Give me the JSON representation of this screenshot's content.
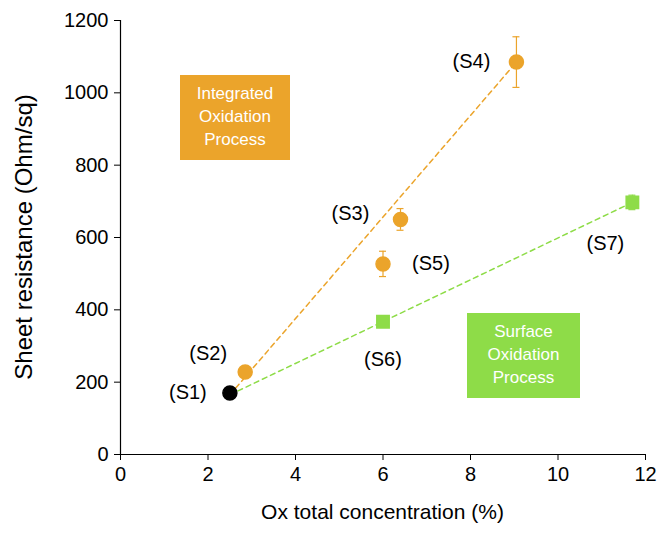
{
  "chart_data": {
    "type": "scatter",
    "x_label": "Ox total concentration (%)",
    "y_label": "Sheet resistance (Ohm/sq)",
    "xlim": [
      0,
      12
    ],
    "xticks": [
      0,
      2,
      4,
      6,
      8,
      10,
      12
    ],
    "ylim": [
      0,
      1200
    ],
    "yticks": [
      0,
      200,
      400,
      600,
      800,
      1000,
      1200
    ],
    "grid": false,
    "series": [
      {
        "name": "Integrated Oxidation Process",
        "color": "#eba42b",
        "marker": "circle",
        "line_style": "dashed",
        "x": [
          2.85,
          6.4,
          9.05,
          6.0
        ],
        "values": [
          228,
          650,
          1085,
          527
        ],
        "errors": [
          15,
          30,
          70,
          35
        ],
        "labels": [
          "(S2)",
          "(S3)",
          "(S4)",
          "(S5)"
        ],
        "trend": {
          "x": [
            2.5,
            9.05
          ],
          "y": [
            165,
            1085
          ]
        }
      },
      {
        "name": "Surface Oxidation Process",
        "color": "#8edc48",
        "marker": "square",
        "line_style": "dashed",
        "x": [
          6.0,
          11.7
        ],
        "values": [
          367,
          697
        ],
        "errors": [
          15,
          20
        ],
        "labels": [
          "(S6)",
          "(S7)"
        ],
        "trend": {
          "x": [
            2.5,
            11.7
          ],
          "y": [
            165,
            697
          ]
        }
      },
      {
        "color": "#000000",
        "marker": "circle",
        "x": [
          2.5
        ],
        "values": [
          170
        ],
        "labels": [
          "(S1)"
        ]
      }
    ]
  }
}
